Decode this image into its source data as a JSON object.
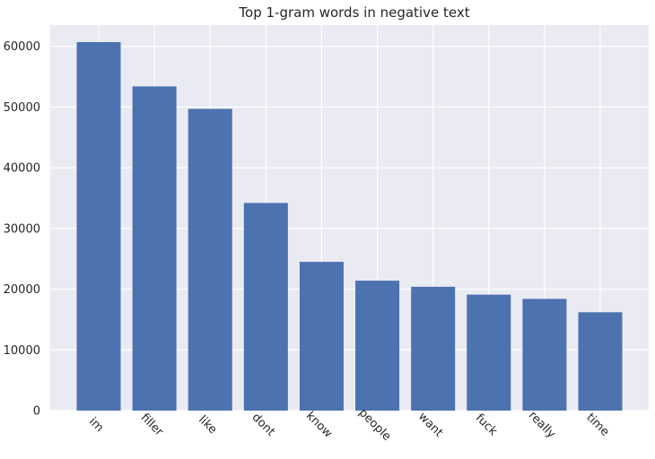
{
  "chart_data": {
    "type": "bar",
    "title": "Top 1-gram words in negative text",
    "xlabel": "",
    "ylabel": "",
    "categories": [
      "im",
      "filler",
      "like",
      "dont",
      "know",
      "people",
      "want",
      "fuck",
      "really",
      "time"
    ],
    "values": [
      60700,
      53400,
      49700,
      34200,
      24500,
      21400,
      20400,
      19100,
      18400,
      16200
    ],
    "ylim": [
      0,
      63500
    ],
    "yticks": [
      0,
      10000,
      20000,
      30000,
      40000,
      50000,
      60000
    ],
    "grid": true,
    "colors": {
      "bar": "#4c72b0",
      "plot_background": "#eaeaf2",
      "grid": "#ffffff",
      "text": "#262626"
    }
  }
}
